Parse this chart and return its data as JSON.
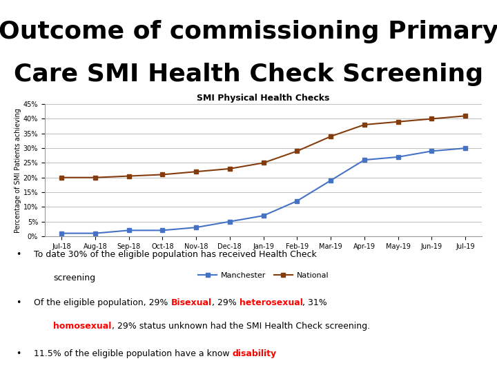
{
  "title_line1": "Outcome of commissioning Primary",
  "title_line2": "Care SMI Health Check Screening",
  "chart_title": "SMI Physical Health Checks",
  "ylabel": "Percentage of SMI Patients achieving",
  "x_labels": [
    "Jul-18",
    "Aug-18",
    "Sep-18",
    "Oct-18",
    "Nov-18",
    "Dec-18",
    "Jan-19",
    "Feb-19",
    "Mar-19",
    "Apr-19",
    "May-19",
    "Jun-19",
    "Jul-19"
  ],
  "manchester": [
    1,
    1,
    2,
    2,
    3,
    5,
    7,
    12,
    19,
    26,
    27,
    29,
    30
  ],
  "national": [
    20,
    20,
    20.5,
    21,
    22,
    23,
    25,
    29,
    34,
    38,
    39,
    40,
    41
  ],
  "manchester_color": "#4472C4",
  "national_color": "#843C0C",
  "ylim": [
    0,
    45
  ],
  "yticks": [
    0,
    5,
    10,
    15,
    20,
    25,
    30,
    35,
    40,
    45
  ],
  "ytick_labels": [
    "0%",
    "5%",
    "10%",
    "15%",
    "20%",
    "25%",
    "30%",
    "35%",
    "40%",
    "45%"
  ],
  "background_color": "#FFFFFF",
  "grid_color": "#BEBEBE",
  "title_fontsize": 26,
  "chart_title_fontsize": 9,
  "axis_fontsize": 7,
  "ylabel_fontsize": 7,
  "legend_fontsize": 8,
  "bullet_fontsize": 9
}
